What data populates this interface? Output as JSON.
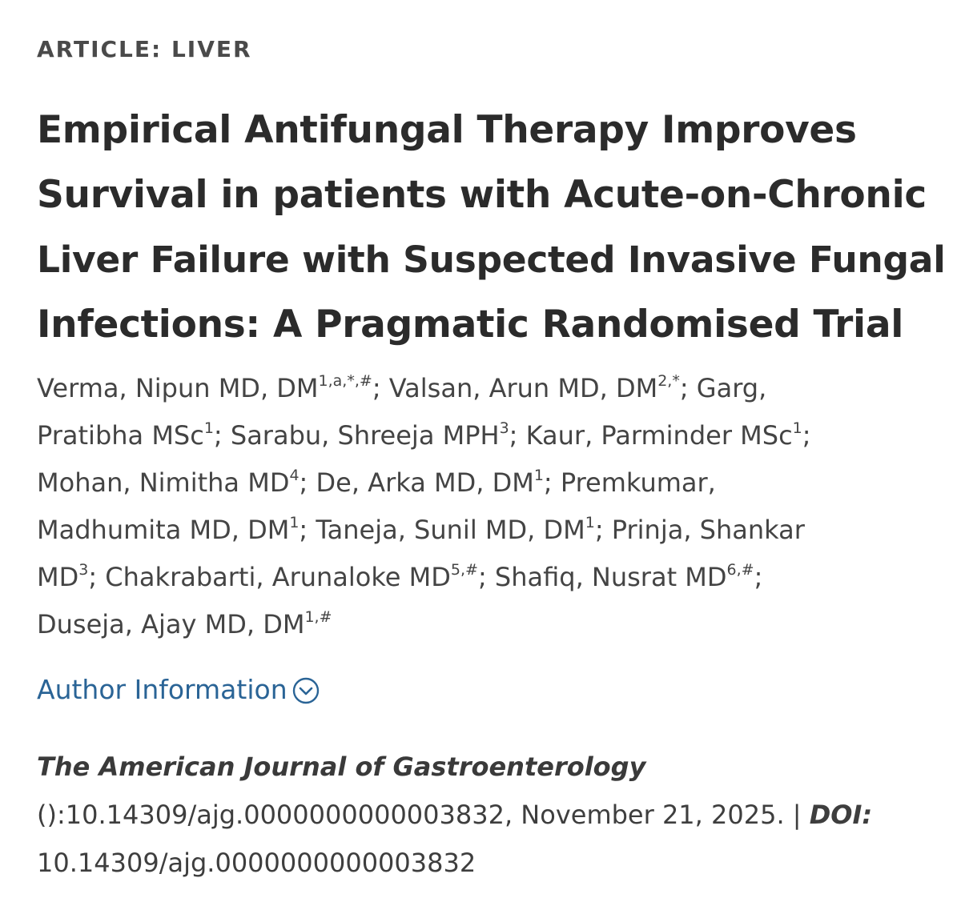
{
  "article_type": "ARTICLE: LIVER",
  "title_lines": [
    "Empirical Antifungal Therapy Improves",
    "Survival in patients with Acute-on-Chronic",
    "Liver Failure with Suspected Invasive Fungal",
    "Infections: A Pragmatic Randomised Trial"
  ],
  "authors": {
    "a1_name": "Verma, Nipun MD, DM",
    "a1_sup": "1,a,*,#",
    "a2_name": "; Valsan, Arun MD, DM",
    "a2_sup": "2,*",
    "a3_name_part1": "; Garg,",
    "a3_name_part2": "Pratibha MSc",
    "a3_sup": "1",
    "a4_name": "; Sarabu, Shreeja MPH",
    "a4_sup": "3",
    "a5_name": "; Kaur, Parminder MSc",
    "a5_sup": "1",
    "a5_sep": ";",
    "a6_name": "Mohan, Nimitha MD",
    "a6_sup": "4",
    "a7_name": "; De, Arka MD, DM",
    "a7_sup": "1",
    "a8_name_part1": "; Premkumar,",
    "a8_name_part2": "Madhumita MD, DM",
    "a8_sup": "1",
    "a9_name": "; Taneja, Sunil MD, DM",
    "a9_sup": "1",
    "a10_name_part1": "; Prinja, Shankar",
    "a10_name_part2": "MD",
    "a10_sup": "3",
    "a11_name": "; Chakrabarti, Arunaloke MD",
    "a11_sup": "5,#",
    "a12_name": "; Shafiq, Nusrat MD",
    "a12_sup": "6,#",
    "a12_sep": ";",
    "a13_name": "Duseja, Ajay MD, DM",
    "a13_sup": "1,#"
  },
  "author_info": {
    "label": "Author Information",
    "icon": "chevron-down-circle-icon",
    "color": "#2a6496"
  },
  "citation": {
    "journal": "The American Journal of Gastroenterology",
    "line2_text": "():10.14309/ajg.0000000000003832, November 21, 2025. | ",
    "doi_label": "DOI:",
    "doi_value": "10.14309/ajg.0000000000003832"
  }
}
